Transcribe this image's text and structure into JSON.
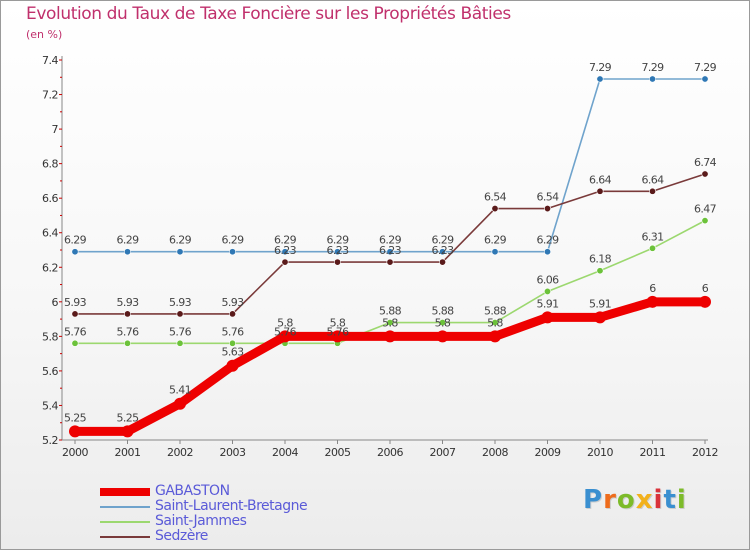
{
  "title": "Evolution du Taux de Taxe Foncière sur les Propriétés Bâties",
  "subtitle": "(en %)",
  "logo": {
    "letters": [
      "P",
      "r",
      "o",
      "x",
      "i",
      "t",
      "i"
    ],
    "colors": [
      "#3a8fd0",
      "#ee6c1c",
      "#7dbb2a",
      "#f2b11c",
      "#d9323a",
      "#3a8fd0",
      "#7dbb2a"
    ]
  },
  "colors": {
    "title": "#c0306c",
    "legend_text": "#5a5ad8",
    "axis": "#888888",
    "tick_mark": "#cc0000"
  },
  "chart_data": {
    "type": "line",
    "title": "Evolution du Taux de Taxe Foncière sur les Propriétés Bâties",
    "ylabel": "(en %)",
    "xlabel": "",
    "grid": false,
    "ylim": [
      5.2,
      7.4
    ],
    "x": [
      "2000",
      "2001",
      "2002",
      "2003",
      "2004",
      "2005",
      "2006",
      "2007",
      "2008",
      "2009",
      "2010",
      "2011",
      "2012"
    ],
    "yticks": [
      "5.2",
      "5.4",
      "5.6",
      "5.8",
      "6",
      "6.2",
      "6.4",
      "6.6",
      "6.8",
      "7",
      "7.2",
      "7.4"
    ],
    "series": [
      {
        "name": "Saint-Laurent-Bretagne",
        "color": "#6fa3cc",
        "marker": "#2f78b5",
        "values": [
          6.29,
          6.29,
          6.29,
          6.29,
          6.29,
          6.29,
          6.29,
          6.29,
          6.29,
          6.29,
          7.29,
          7.29,
          7.29
        ],
        "labels": [
          "6.29",
          "6.29",
          "6.29",
          "6.29",
          "6.29",
          "6.29",
          "6.29",
          "6.29",
          "6.29",
          "6.29",
          "7.29",
          "7.29",
          "7.29"
        ]
      },
      {
        "name": "Saint-Jammes",
        "color": "#9cd86f",
        "marker": "#6cc23a",
        "values": [
          5.76,
          5.76,
          5.76,
          5.76,
          5.76,
          5.76,
          5.88,
          5.88,
          5.88,
          6.06,
          6.18,
          6.31,
          6.47
        ],
        "labels": [
          "5.76",
          "5.76",
          "5.76",
          "5.76",
          "5.76",
          "5.76",
          "5.88",
          "5.88",
          "5.88",
          "6.06",
          "6.18",
          "6.31",
          "6.47"
        ]
      },
      {
        "name": "Sedzère",
        "color": "#7a3a3a",
        "marker": "#5a1a1a",
        "values": [
          5.93,
          5.93,
          5.93,
          5.93,
          6.23,
          6.23,
          6.23,
          6.23,
          6.54,
          6.54,
          6.64,
          6.64,
          6.74
        ],
        "labels": [
          "5.93",
          "5.93",
          "5.93",
          "5.93",
          "6.23",
          "6.23",
          "6.23",
          "6.23",
          "6.54",
          "6.54",
          "6.64",
          "6.64",
          "6.74"
        ]
      },
      {
        "name": "GABASTON",
        "color": "#ee0000",
        "marker": "#ee0000",
        "values": [
          5.25,
          5.25,
          5.41,
          5.63,
          5.8,
          5.8,
          5.8,
          5.8,
          5.8,
          5.91,
          5.91,
          6,
          6
        ],
        "labels": [
          "5.25",
          "5.25",
          "5.41",
          "5.63",
          "5.8",
          "5.8",
          "5.8",
          "5.8",
          "5.8",
          "5.91",
          "5.91",
          "6",
          "6"
        ]
      }
    ]
  },
  "legend": [
    {
      "name": "GABASTON",
      "color": "#ee0000",
      "weight": "thick"
    },
    {
      "name": "Saint-Laurent-Bretagne",
      "color": "#6fa3cc",
      "weight": "thin"
    },
    {
      "name": "Saint-Jammes",
      "color": "#9cd86f",
      "weight": "thin"
    },
    {
      "name": "Sedzère",
      "color": "#7a3a3a",
      "weight": "thin"
    }
  ]
}
